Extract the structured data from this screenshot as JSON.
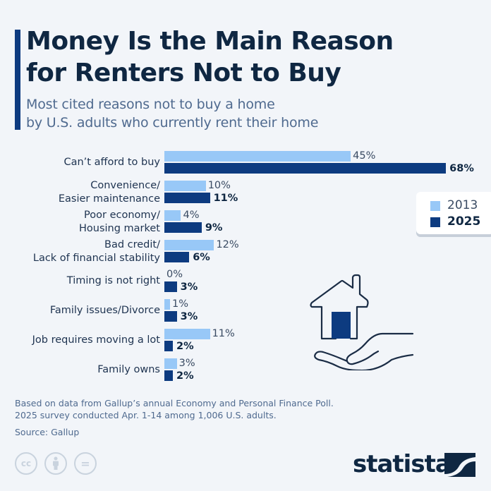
{
  "header": {
    "title_line1": "Money Is the Main Reason",
    "title_line2": "for Renters Not to Buy",
    "subtitle_line1": "Most cited reasons not to buy a home",
    "subtitle_line2": "by U.S. adults who currently rent their home"
  },
  "legend": {
    "items": [
      {
        "label": "2013",
        "color": "#98c8f7"
      },
      {
        "label": "2025",
        "color": "#0d3b80"
      }
    ]
  },
  "rows": [
    {
      "label1": "Can’t afford to buy",
      "label2": "",
      "v2013": "45%",
      "v2025": "68%"
    },
    {
      "label1": "Convenience/",
      "label2": "Easier maintenance",
      "v2013": "10%",
      "v2025": "11%"
    },
    {
      "label1": "Poor economy/",
      "label2": "Housing market",
      "v2013": "4%",
      "v2025": "9%"
    },
    {
      "label1": "Bad credit/",
      "label2": "Lack of financial stability",
      "v2013": "12%",
      "v2025": "6%"
    },
    {
      "label1": "Timing is not right",
      "label2": "",
      "v2013": "0%",
      "v2025": "3%"
    },
    {
      "label1": "Family issues/Divorce",
      "label2": "",
      "v2013": "1%",
      "v2025": "3%"
    },
    {
      "label1": "Job requires moving a lot",
      "label2": "",
      "v2013": "11%",
      "v2025": "2%"
    },
    {
      "label1": "Family owns",
      "label2": "",
      "v2013": "3%",
      "v2025": "2%"
    }
  ],
  "footer": {
    "note_line1": "Based on data from Gallup’s annual Economy and Personal Finance Poll.",
    "note_line2": "2025 survey conducted Apr. 1-14 among 1,006 U.S. adults.",
    "source": "Source: Gallup",
    "cc_icons": [
      "cc",
      "by",
      "nd"
    ],
    "cc_text": "cc",
    "nd_text": "=",
    "brand": "statista"
  },
  "chart_data": {
    "type": "bar",
    "orientation": "horizontal",
    "title": "Money Is the Main Reason for Renters Not to Buy",
    "subtitle": "Most cited reasons not to buy a home by U.S. adults who currently rent their home",
    "categories": [
      "Can’t afford to buy",
      "Convenience/Easier maintenance",
      "Poor economy/Housing market",
      "Bad credit/Lack of financial stability",
      "Timing is not right",
      "Family issues/Divorce",
      "Job requires moving a lot",
      "Family owns"
    ],
    "series": [
      {
        "name": "2013",
        "color": "#98c8f7",
        "values": [
          45,
          10,
          4,
          12,
          0,
          1,
          11,
          3
        ]
      },
      {
        "name": "2025",
        "color": "#0d3b80",
        "values": [
          68,
          11,
          9,
          6,
          3,
          3,
          2,
          2
        ]
      }
    ],
    "unit": "%",
    "xlabel": "",
    "ylabel": "",
    "grid": false,
    "legend_position": "right",
    "source": "Gallup"
  }
}
